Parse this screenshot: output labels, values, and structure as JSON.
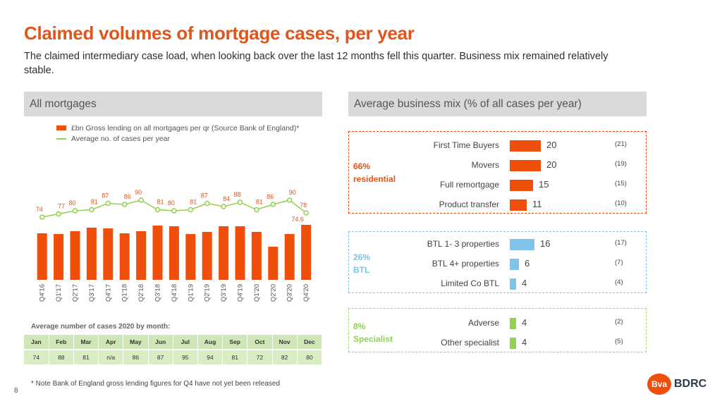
{
  "title": "Claimed volumes of mortgage cases, per year",
  "subtitle": "The claimed intermediary case load, when looking back over the last 12 months fell this quarter. Business mix remained relatively stable.",
  "page_number": "8",
  "left_panel": {
    "header": "All mortgages"
  },
  "right_panel": {
    "header": "Average business mix (% of all cases per year)"
  },
  "legend": {
    "bar": "£bn Gross lending on all mortgages per qr (Source Bank of England)*",
    "line": "Average no. of cases per year"
  },
  "colors": {
    "brand": "#e2541a",
    "bar": "#f04e0b",
    "line": "#92d050",
    "btl": "#7ec4ea",
    "specialist": "#92d050"
  },
  "chart_data": {
    "type": "bar",
    "categories": [
      "Q4'16",
      "Q1'17",
      "Q2'17",
      "Q3'17",
      "Q4'17",
      "Q1'18",
      "Q2'18",
      "Q3'18",
      "Q4'18",
      "Q1'19",
      "Q2'19",
      "Q3'19",
      "Q4'19",
      "Q1'20",
      "Q2'20",
      "Q3'20",
      "Q4'20"
    ],
    "series": [
      {
        "name": "£bn Gross lending on all mortgages per qr (Source Bank of England)*",
        "type": "bar",
        "values": [
          66,
          65,
          69,
          74,
          73,
          66,
          69,
          77,
          76,
          65,
          68,
          76,
          76,
          68,
          47,
          65,
          null
        ]
      },
      {
        "name": "Average no. of cases per year",
        "type": "line",
        "values": [
          74,
          77,
          80,
          81,
          87,
          86,
          90,
          81,
          80,
          81,
          87,
          84,
          88,
          81,
          86,
          90,
          78
        ],
        "value_labels": [
          "74",
          "77",
          "80",
          "81",
          "87",
          "86",
          "90",
          "81",
          "80",
          "81",
          "87",
          "84",
          "88",
          "81",
          "86",
          "90",
          "78"
        ]
      }
    ],
    "projected_bar": {
      "category": "Q4'20",
      "value": 78
    },
    "annotation": "74.6"
  },
  "monthly_table": {
    "title": "Average number of cases 2020 by month:",
    "months": [
      "Jan",
      "Feb",
      "Mar",
      "Apr",
      "May",
      "Jun",
      "Jul",
      "Aug",
      "Sep",
      "Oct",
      "Nov",
      "Dec"
    ],
    "values": [
      "74",
      "88",
      "81",
      "n/a",
      "86",
      "87",
      "95",
      "94",
      "81",
      "72",
      "82",
      "80"
    ]
  },
  "footnote": "* Note Bank of England gross lending figures for Q4 have not yet been released",
  "business_mix": {
    "residential": {
      "label_pct": "66%",
      "label_name": "residential",
      "items": [
        {
          "name": "First Time Buyers",
          "value": 20,
          "prev": "(21)"
        },
        {
          "name": "Movers",
          "value": 20,
          "prev": "(19)"
        },
        {
          "name": "Full remortgage",
          "value": 15,
          "prev": "(15)"
        },
        {
          "name": "Product transfer",
          "value": 11,
          "prev": "(10)"
        }
      ]
    },
    "btl": {
      "label_pct": "26%",
      "label_name": "BTL",
      "items": [
        {
          "name": "BTL 1- 3 properties",
          "value": 16,
          "prev": "(17)"
        },
        {
          "name": "BTL 4+ properties",
          "value": 6,
          "prev": "(7)"
        },
        {
          "name": "Limited Co BTL",
          "value": 4,
          "prev": "(4)"
        }
      ]
    },
    "specialist": {
      "label_pct": "8%",
      "label_name": "Specialist",
      "items": [
        {
          "name": "Adverse",
          "value": 4,
          "prev": "(2)"
        },
        {
          "name": "Other specialist",
          "value": 4,
          "prev": "(5)"
        }
      ]
    }
  },
  "logo": {
    "mark": "Bva",
    "text": "BDRC"
  }
}
